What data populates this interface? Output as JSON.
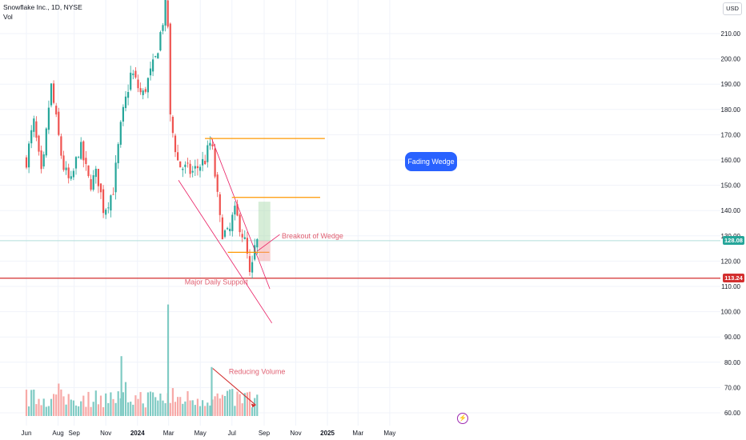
{
  "header": {
    "symbol_line": "Snowflake Inc., 1D, NYSE",
    "volume_label": "Vol",
    "currency": "USD"
  },
  "colors": {
    "up": "#26a69a",
    "down": "#ef5350",
    "up_volume": "#80cbc4",
    "down_volume": "#f7a9a7",
    "support": "#d32f2f",
    "orange": "#ff9800",
    "wedge": "#e91e63",
    "callout": "#2962ff"
  },
  "annotations": {
    "callout": "Fading Wedge",
    "breakout": "Breakout of Wedge",
    "support": "Major Daily Support",
    "volume": "Reducing Volume"
  },
  "price_labels": {
    "last": "128.08",
    "support": "113.24"
  },
  "chart_data": {
    "type": "candlestick",
    "title": "Snowflake Inc., 1D, NYSE",
    "y_axis": {
      "ticks": [
        "210.00",
        "200.00",
        "190.00",
        "180.00",
        "170.00",
        "160.00",
        "150.00",
        "140.00",
        "130.00",
        "120.00",
        "110.00",
        "100.00",
        "90.00",
        "80.00",
        "70.00",
        "60.00"
      ],
      "range": [
        57,
        215
      ]
    },
    "x_axis": {
      "ticks": [
        "Jun",
        "Aug",
        "Sep",
        "Nov",
        "2024",
        "Mar",
        "May",
        "Jul",
        "Sep",
        "Nov",
        "2025",
        "Mar",
        "May"
      ]
    },
    "close_path": [
      {
        "date": "2023-06-01",
        "close": 160
      },
      {
        "date": "2023-06-15",
        "close": 175
      },
      {
        "date": "2023-07-01",
        "close": 152
      },
      {
        "date": "2023-07-18",
        "close": 190
      },
      {
        "date": "2023-08-10",
        "close": 158
      },
      {
        "date": "2023-08-25",
        "close": 150
      },
      {
        "date": "2023-09-12",
        "close": 166
      },
      {
        "date": "2023-10-01",
        "close": 150
      },
      {
        "date": "2023-10-15",
        "close": 155
      },
      {
        "date": "2023-10-28",
        "close": 140
      },
      {
        "date": "2023-11-15",
        "close": 148
      },
      {
        "date": "2023-12-01",
        "close": 175
      },
      {
        "date": "2023-12-20",
        "close": 195
      },
      {
        "date": "2024-01-10",
        "close": 185
      },
      {
        "date": "2024-02-05",
        "close": 200
      },
      {
        "date": "2024-02-28",
        "close": 225
      },
      {
        "date": "2024-03-01",
        "close": 180
      },
      {
        "date": "2024-03-20",
        "close": 158
      },
      {
        "date": "2024-04-15",
        "close": 155
      },
      {
        "date": "2024-05-10",
        "close": 160
      },
      {
        "date": "2024-05-22",
        "close": 168
      },
      {
        "date": "2024-06-10",
        "close": 132
      },
      {
        "date": "2024-06-25",
        "close": 130
      },
      {
        "date": "2024-07-05",
        "close": 140
      },
      {
        "date": "2024-07-15",
        "close": 135
      },
      {
        "date": "2024-07-28",
        "close": 126
      },
      {
        "date": "2024-08-06",
        "close": 111
      },
      {
        "date": "2024-08-12",
        "close": 124
      },
      {
        "date": "2024-08-20",
        "close": 128.08
      }
    ],
    "levels": [
      {
        "label": "Major Daily Support",
        "value": 113.24
      },
      {
        "value": 168.5
      },
      {
        "value": 145.2
      },
      {
        "value": 123.5
      }
    ],
    "last_price": 128.08,
    "volume": {
      "range": [
        55,
        80
      ],
      "peaks": [
        {
          "date": "2024-02-29",
          "value": 96
        },
        {
          "date": "2023-12-01",
          "value": 77
        },
        {
          "date": "2024-05-23",
          "value": 73
        }
      ]
    },
    "grid": true,
    "legend": "none"
  }
}
